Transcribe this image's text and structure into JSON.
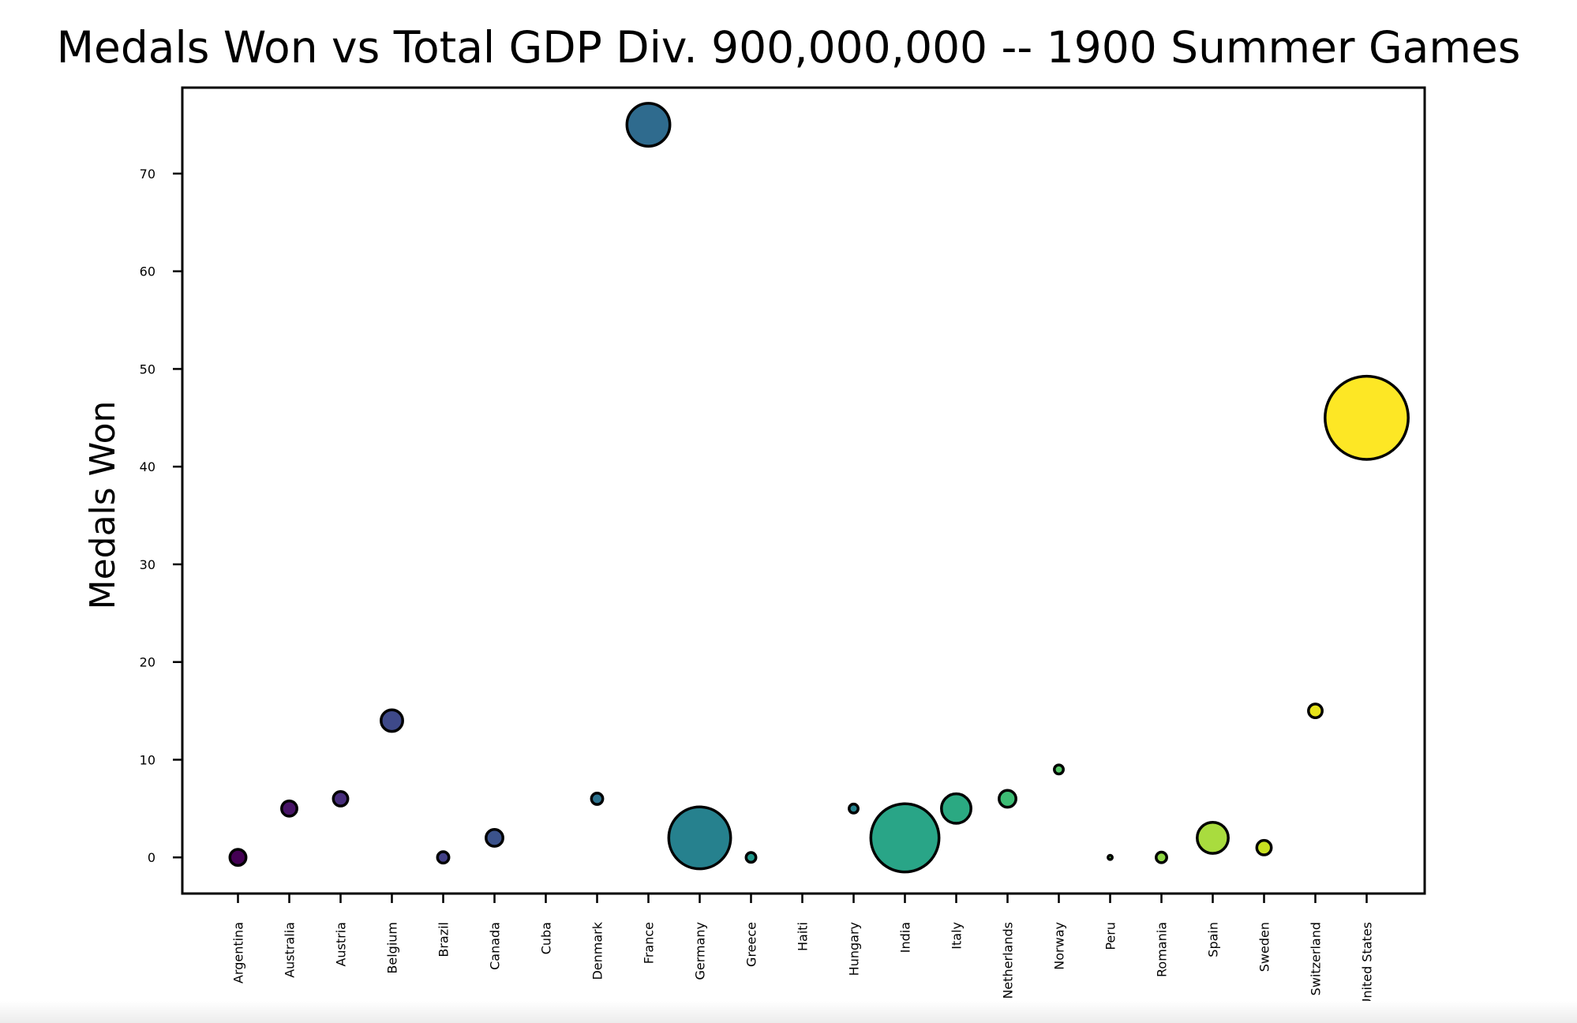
{
  "chart_data": {
    "type": "scatter",
    "title": "Medals Won vs Total GDP Div. 900,000,000 -- 1900 Summer Games",
    "xlabel": "",
    "ylabel": "Medals Won",
    "ylim": [
      -3.7,
      78.8
    ],
    "yticks": [
      0,
      10,
      20,
      30,
      40,
      50,
      60,
      70
    ],
    "grid": false,
    "categories": [
      "Argentina",
      "Australia",
      "Austria",
      "Belgium",
      "Brazil",
      "Canada",
      "Cuba",
      "Denmark",
      "France",
      "Germany",
      "Greece",
      "Haiti",
      "Hungary",
      "India",
      "Italy",
      "Netherlands",
      "Norway",
      "Peru",
      "Romania",
      "Spain",
      "Sweden",
      "Switzerland",
      "United States"
    ],
    "values": [
      0,
      5,
      6,
      14,
      0,
      2,
      null,
      6,
      75,
      2,
      0,
      null,
      5,
      2,
      5,
      6,
      9,
      0,
      0,
      2,
      1,
      15,
      45
    ],
    "bubble_size": [
      10.2,
      9.7,
      9.2,
      13.7,
      7.2,
      10.7,
      null,
      7.2,
      27.2,
      39.2,
      6.2,
      null,
      5.7,
      43.2,
      18.7,
      10.7,
      5.7,
      2.7,
      6.7,
      19.7,
      9.2,
      8.7,
      52.7
    ],
    "colors": [
      "#440154",
      "#481467",
      "#472d7b",
      "#3e4989",
      "#424086",
      "#3b528b",
      "#31688e",
      "#2c728e",
      "#2f6b8e",
      "#26818e",
      "#1f988b",
      "#27ad81",
      "#25838e",
      "#29a587",
      "#2ba982",
      "#3dbc74",
      "#56c667",
      "#6ece58",
      "#8fd744",
      "#a9dc3e",
      "#c8e020",
      "#e6e31a",
      "#fde725"
    ]
  }
}
